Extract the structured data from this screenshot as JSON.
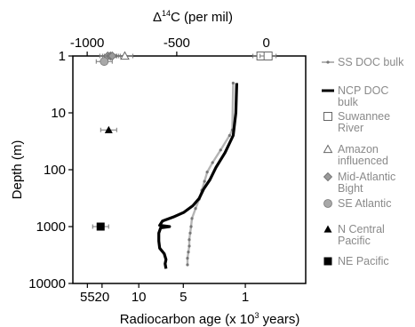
{
  "chart_data": {
    "type": "line",
    "title": "",
    "top_axis": {
      "label_pre": "Δ",
      "label_sup": "14",
      "label_post": "C (per mil)",
      "ticks": [
        {
          "value": -1000,
          "text": "-1000"
        },
        {
          "value": -500,
          "text": "-500"
        },
        {
          "value": 0,
          "text": "0"
        }
      ]
    },
    "bottom_axis": {
      "label_pre": "Radiocarbon age (x 10",
      "label_sup": "3",
      "label_post": " years)",
      "ticks": [
        {
          "value": 55,
          "text": "55"
        },
        {
          "value": 20,
          "text": "20"
        },
        {
          "value": 10,
          "text": "10"
        },
        {
          "value": 5,
          "text": "5"
        },
        {
          "value": 1,
          "text": "1"
        }
      ]
    },
    "y_axis": {
      "label": "Depth (m)",
      "scale": "log",
      "reversed": true,
      "range": [
        1,
        10000
      ],
      "ticks": [
        {
          "value": 1,
          "text": "1"
        },
        {
          "value": 10,
          "text": "10"
        },
        {
          "value": 100,
          "text": "100"
        },
        {
          "value": 1000,
          "text": "1000"
        },
        {
          "value": 10000,
          "text": "10000"
        }
      ]
    },
    "x_range_per_mil": [
      -1080,
      220
    ],
    "series": [
      {
        "name": "SS DOC bulk",
        "color": "#b5b5b5",
        "marker": "dot",
        "points": [
          {
            "x": -185,
            "y": 3
          },
          {
            "x": -190,
            "y": 20
          },
          {
            "x": -205,
            "y": 25
          },
          {
            "x": -255,
            "y": 45
          },
          {
            "x": -300,
            "y": 75
          },
          {
            "x": -330,
            "y": 110
          },
          {
            "x": -345,
            "y": 160
          },
          {
            "x": -360,
            "y": 230
          },
          {
            "x": -375,
            "y": 330
          },
          {
            "x": -395,
            "y": 480
          },
          {
            "x": -415,
            "y": 720
          },
          {
            "x": -420,
            "y": 1000
          },
          {
            "x": -425,
            "y": 1300
          },
          {
            "x": -430,
            "y": 1700
          },
          {
            "x": -430,
            "y": 2200
          },
          {
            "x": -435,
            "y": 2800
          },
          {
            "x": -440,
            "y": 3600
          },
          {
            "x": -440,
            "y": 4700
          }
        ]
      },
      {
        "name": "NCP DOC bulk",
        "color": "#000000",
        "marker": "none",
        "points": [
          {
            "x": -165,
            "y": 3
          },
          {
            "x": -170,
            "y": 10
          },
          {
            "x": -185,
            "y": 25
          },
          {
            "x": -230,
            "y": 50
          },
          {
            "x": -280,
            "y": 90
          },
          {
            "x": -315,
            "y": 150
          },
          {
            "x": -350,
            "y": 220
          },
          {
            "x": -375,
            "y": 320
          },
          {
            "x": -410,
            "y": 430
          },
          {
            "x": -460,
            "y": 560
          },
          {
            "x": -520,
            "y": 680
          },
          {
            "x": -580,
            "y": 800
          },
          {
            "x": -595,
            "y": 950
          },
          {
            "x": -540,
            "y": 1000
          },
          {
            "x": -590,
            "y": 1050
          },
          {
            "x": -600,
            "y": 1300
          },
          {
            "x": -600,
            "y": 1800
          },
          {
            "x": -595,
            "y": 2400
          },
          {
            "x": -570,
            "y": 3000
          },
          {
            "x": -560,
            "y": 3800
          },
          {
            "x": -565,
            "y": 4500
          },
          {
            "x": -560,
            "y": 5500
          }
        ]
      }
    ],
    "markers": [
      {
        "name": "Suwannee River",
        "shape": "square-open",
        "color": "#888888",
        "points": [
          {
            "x": -30,
            "y": 1
          },
          {
            "x": 10,
            "y": 1
          }
        ]
      },
      {
        "name": "Amazon influenced",
        "shape": "triangle-open",
        "color": "#888888",
        "points": [
          {
            "x": -790,
            "y": 1
          }
        ]
      },
      {
        "name": "Mid-Atlantic Bight",
        "shape": "diamond",
        "color": "#9a9a9a",
        "points": [
          {
            "x": -885,
            "y": 1
          },
          {
            "x": -870,
            "y": 1
          },
          {
            "x": -860,
            "y": 1
          }
        ]
      },
      {
        "name": "SE Atlantic",
        "shape": "circle",
        "color": "#a8a8a8",
        "points": [
          {
            "x": -905,
            "y": 1.25
          }
        ]
      },
      {
        "name": "N Central Pacific",
        "shape": "triangle",
        "color": "#000000",
        "points": [
          {
            "x": -880,
            "y": 20
          }
        ]
      },
      {
        "name": "NE Pacific",
        "shape": "square",
        "color": "#000000",
        "points": [
          {
            "x": -925,
            "y": 1000
          }
        ]
      }
    ],
    "legend": {
      "position": "right",
      "entries": [
        {
          "label": "SS DOC bulk",
          "symbol": "gray-line-dots"
        },
        {
          "label": "NCP DOC bulk",
          "symbol": "black-line"
        },
        {
          "label": "Suwannee River",
          "symbol": "square-open"
        },
        {
          "label": "Amazon influenced",
          "symbol": "triangle-open"
        },
        {
          "label": "Mid-Atlantic Bight",
          "symbol": "diamond"
        },
        {
          "label": "SE Atlantic",
          "symbol": "circle"
        },
        {
          "label": "N Central Pacific",
          "symbol": "triangle"
        },
        {
          "label": "NE Pacific",
          "symbol": "square"
        }
      ]
    }
  }
}
